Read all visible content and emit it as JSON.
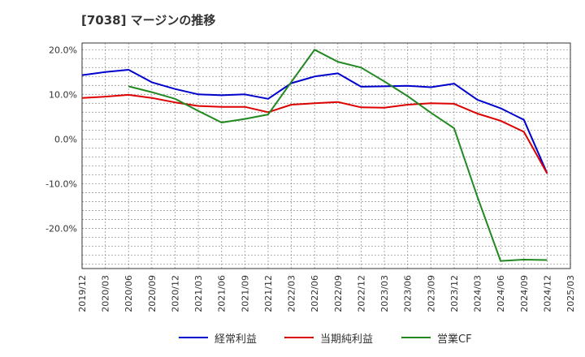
{
  "chart_data": {
    "type": "line",
    "title": "[7038]  マージンの推移",
    "ylim": [
      -29,
      21.5
    ],
    "y_ticks": [
      20,
      10,
      0,
      -10,
      -20
    ],
    "y_tick_labels": [
      "20.0%",
      "10.0%",
      "0.0%",
      "-10.0%",
      "-20.0%"
    ],
    "x_labels": [
      "2019/12",
      "2020/03",
      "2020/06",
      "2020/09",
      "2020/12",
      "2021/03",
      "2021/06",
      "2021/09",
      "2021/12",
      "2022/03",
      "2022/06",
      "2022/09",
      "2022/12",
      "2023/03",
      "2023/06",
      "2023/09",
      "2023/12",
      "2024/03",
      "2024/06",
      "2024/09",
      "2024/12",
      "2025/03"
    ],
    "grid": true,
    "legend_position": "bottom",
    "series": [
      {
        "name": "経常利益",
        "color": "#0000cc",
        "values": [
          14.3,
          15.0,
          15.5,
          12.7,
          11.2,
          10.0,
          9.8,
          10.0,
          9.0,
          12.5,
          14.0,
          14.7,
          11.7,
          11.8,
          11.9,
          11.6,
          12.4,
          8.8,
          6.9,
          4.3,
          -7.7,
          null
        ]
      },
      {
        "name": "当期純利益",
        "color": "#dd0000",
        "values": [
          9.2,
          9.5,
          9.9,
          9.2,
          8.2,
          7.4,
          7.2,
          7.2,
          6.0,
          7.7,
          8.0,
          8.3,
          7.1,
          7.0,
          7.7,
          8.0,
          7.9,
          5.7,
          4.1,
          1.6,
          -7.7,
          null
        ]
      },
      {
        "name": "営業CF",
        "color": "#228822",
        "values": [
          null,
          null,
          11.8,
          10.5,
          9.0,
          6.3,
          3.7,
          4.5,
          5.5,
          12.8,
          20.0,
          17.3,
          16.0,
          12.9,
          9.6,
          5.9,
          2.4,
          -12.9,
          -27.3,
          -27.0,
          -27.1,
          null
        ]
      }
    ]
  }
}
